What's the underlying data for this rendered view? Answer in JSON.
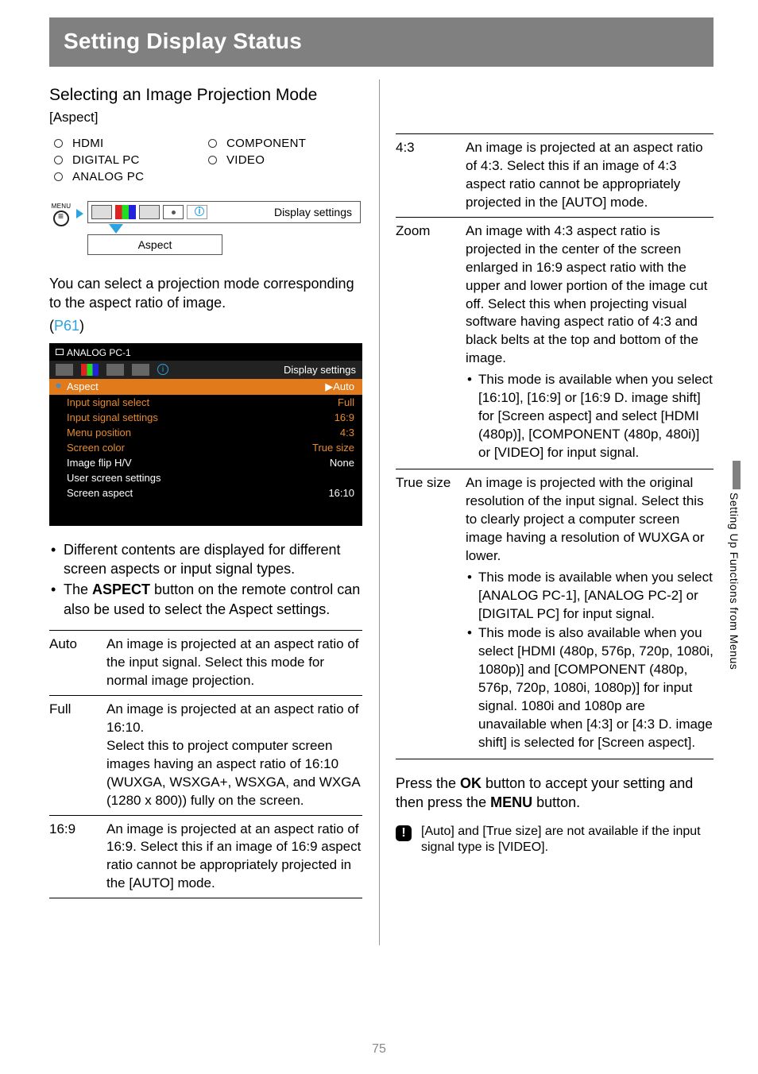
{
  "header": "Setting Display Status",
  "side_tab": "Setting Up Functions from Menus",
  "page_number": "75",
  "left": {
    "subheading": "Selecting an Image Projection Mode",
    "bracket": "[Aspect]",
    "radios": [
      "HDMI",
      "COMPONENT",
      "DIGITAL PC",
      "VIDEO",
      "ANALOG PC"
    ],
    "nav": {
      "menu_label": "MENU",
      "endcap": "Display settings",
      "chip": "Aspect"
    },
    "intro1": "You can select a projection mode corresponding to the aspect ratio of image.",
    "intro_link_open": "(",
    "intro_link": "P61",
    "intro_link_close": ")",
    "screenshot": {
      "title": "ANALOG PC-1",
      "dslabel": "Display settings",
      "rows": [
        {
          "k": "Aspect",
          "v": "Auto",
          "cls": "hl"
        },
        {
          "k": "Input signal select",
          "v": "Full",
          "cls": "o"
        },
        {
          "k": "Input signal settings",
          "v": "16:9",
          "cls": "o"
        },
        {
          "k": "Menu position",
          "v": "4:3",
          "cls": "o"
        },
        {
          "k": "Screen color",
          "v": "True size",
          "cls": "o"
        },
        {
          "k": "Image flip H/V",
          "v": "None",
          "cls": ""
        },
        {
          "k": "User screen settings",
          "v": "",
          "cls": ""
        },
        {
          "k": "Screen aspect",
          "v": "16:10",
          "cls": ""
        }
      ]
    },
    "bullets": [
      "Different contents are displayed for different screen aspects or input signal types.",
      "The <b>ASPECT</b> button on the remote control can also be used to select the Aspect settings."
    ],
    "defs": [
      {
        "term": "Auto",
        "def": "An image is projected at an aspect ratio of the input signal. Select this mode for normal image projection."
      },
      {
        "term": "Full",
        "def": "An image is projected at an aspect ratio of 16:10.\nSelect this to project computer screen images having an aspect ratio of 16:10 (WUXGA, WSXGA+, WSXGA, and WXGA (1280 x 800)) fully on the screen."
      },
      {
        "term": "16:9",
        "def": "An image is projected at an aspect ratio of 16:9. Select this if an image of 16:9 aspect ratio cannot be appropriately projected in the [AUTO] mode."
      }
    ]
  },
  "right": {
    "defs": [
      {
        "term": "4:3",
        "def": "An image is projected at an aspect ratio of 4:3. Select this if an image of 4:3 aspect ratio cannot be appropriately projected in the [AUTO] mode.",
        "subs": []
      },
      {
        "term": "Zoom",
        "def": "An image with 4:3 aspect ratio is projected in the center of the screen enlarged in 16:9 aspect ratio with the upper and lower portion of the image cut off. Select this when projecting visual software having aspect ratio of 4:3 and black belts at the top and bottom of the image.",
        "subs": [
          "This mode is available when you select [16:10], [16:9] or [16:9 D. image shift] for [Screen aspect] and select [HDMI (480p)], [COMPONENT (480p, 480i)] or [VIDEO] for input signal."
        ]
      },
      {
        "term": "True size",
        "def": "An image is projected with the original resolution of the input signal. Select this to clearly project a computer screen image having a resolution of WUXGA or lower.",
        "subs": [
          "This mode is available when you select [ANALOG PC-1], [ANALOG PC-2] or [DIGITAL PC] for input signal.",
          "This mode is also available when you select [HDMI (480p, 576p, 720p, 1080i, 1080p)] and [COMPONENT (480p, 576p, 720p, 1080i, 1080p)] for input signal. 1080i and 1080p are unavailable when [4:3] or [4:3 D. image shift] is selected for [Screen aspect]."
        ]
      }
    ],
    "press_note": "Press the <b>OK</b> button to accept your setting and then press the <b>MENU</b> button.",
    "alert": "[Auto] and [True size] are not available if the input signal type is [VIDEO]."
  }
}
